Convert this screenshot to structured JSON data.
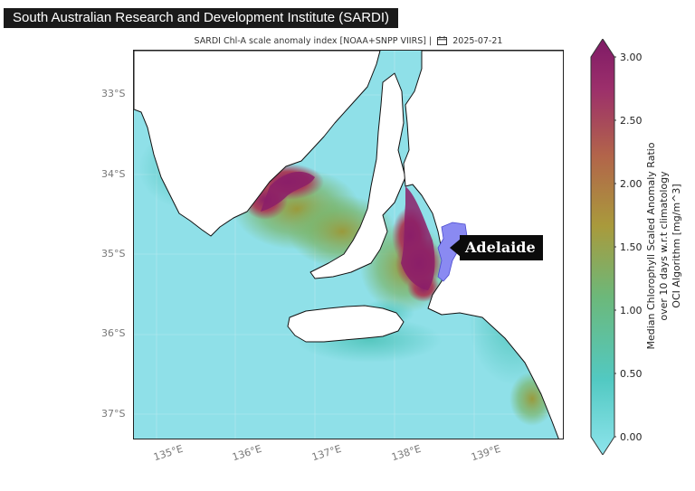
{
  "banner": {
    "text": "South Australian Research and Development Institute (SARDI)"
  },
  "plot": {
    "title_prefix": "SARDI Chl-A scale anomaly index [NOAA+SNPP VIIRS] |",
    "date": "2025-07-21",
    "calendar_icon": "calendar-icon"
  },
  "axes": {
    "lat_labels": [
      "33°S",
      "34°S",
      "35°S",
      "36°S",
      "37°S"
    ],
    "lon_labels": [
      "135°E",
      "136°E",
      "137°E",
      "138°E",
      "139°E"
    ]
  },
  "annotation": {
    "city": "Adelaide"
  },
  "colorbar": {
    "ticks": [
      "3.00",
      "2.50",
      "2.00",
      "1.50",
      "1.00",
      "0.50",
      "0.00"
    ],
    "title_lines": [
      "Median Chlorophyll Scaled Anomaly Ratio",
      "over 10 days w.r.t climatology",
      "OCI Algorithm [mg/m^3]"
    ],
    "range": [
      0,
      3
    ],
    "colors": [
      "#8ee4ec",
      "#52c9c2",
      "#6cb87a",
      "#a99a3c",
      "#b2644a",
      "#9c2f6b",
      "#7e1a66"
    ],
    "extend": "both"
  },
  "colors": {
    "ocean": "#8fe0e8",
    "land": "#ffffff",
    "coastline": "#111111",
    "city_marker": "#8a8af2",
    "high_anomaly": "#8b1f68"
  }
}
